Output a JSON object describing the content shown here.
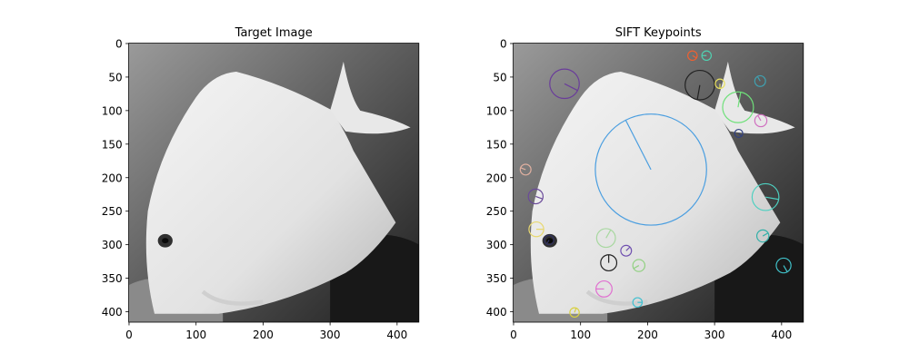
{
  "chart_data": [
    {
      "type": "image",
      "title": "Target Image",
      "xlim": [
        -0.5,
        432.5
      ],
      "ylim": [
        415.5,
        -0.5
      ],
      "xticks": [
        0,
        100,
        200,
        300,
        400
      ],
      "yticks": [
        0,
        50,
        100,
        150,
        200,
        250,
        300,
        350,
        400
      ]
    },
    {
      "type": "image",
      "title": "SIFT Keypoints",
      "xlim": [
        -0.5,
        432.5
      ],
      "ylim": [
        415.5,
        -0.5
      ],
      "xticks": [
        0,
        100,
        200,
        300,
        400
      ],
      "yticks": [
        0,
        50,
        100,
        150,
        200,
        250,
        300,
        350,
        400
      ],
      "keypoints": {
        "x": [
          205,
          76,
          278,
          335,
          376,
          138,
          142,
          135,
          33,
          34,
          187,
          369,
          403,
          372,
          18,
          168,
          308,
          368,
          267,
          288,
          91,
          185,
          53,
          336
        ],
        "y": [
          188,
          60,
          62,
          95,
          229,
          290,
          327,
          366,
          228,
          277,
          331,
          115,
          331,
          287,
          188,
          309,
          60,
          56,
          18,
          18,
          401,
          386,
          293,
          134
        ],
        "sizes": [
          83,
          22,
          22,
          23,
          20,
          14,
          12,
          12,
          11,
          11,
          9,
          9,
          11,
          9,
          8,
          8,
          7,
          8,
          7,
          7,
          7,
          7,
          7,
          6
        ],
        "angles": [
          -117,
          27,
          100,
          -80,
          10,
          -60,
          -90,
          180,
          20,
          0,
          150,
          -120,
          60,
          -30,
          200,
          -45,
          90,
          240,
          30,
          180,
          -70,
          0,
          120,
          45
        ],
        "colors": [
          "#4a9ee0",
          "#6a3d9a",
          "#222222",
          "#6fe07a",
          "#4dd0c0",
          "#a8d8a0",
          "#222222",
          "#e070d0",
          "#6a4a9a",
          "#e8d870",
          "#90d080",
          "#d070c0",
          "#40c0c8",
          "#30b0a8",
          "#e0b0a0",
          "#7050b0",
          "#e8e060",
          "#40a0b0",
          "#f06030",
          "#50d0b0",
          "#d8d040",
          "#40c0d0",
          "#303060",
          "#304080"
        ]
      }
    }
  ]
}
